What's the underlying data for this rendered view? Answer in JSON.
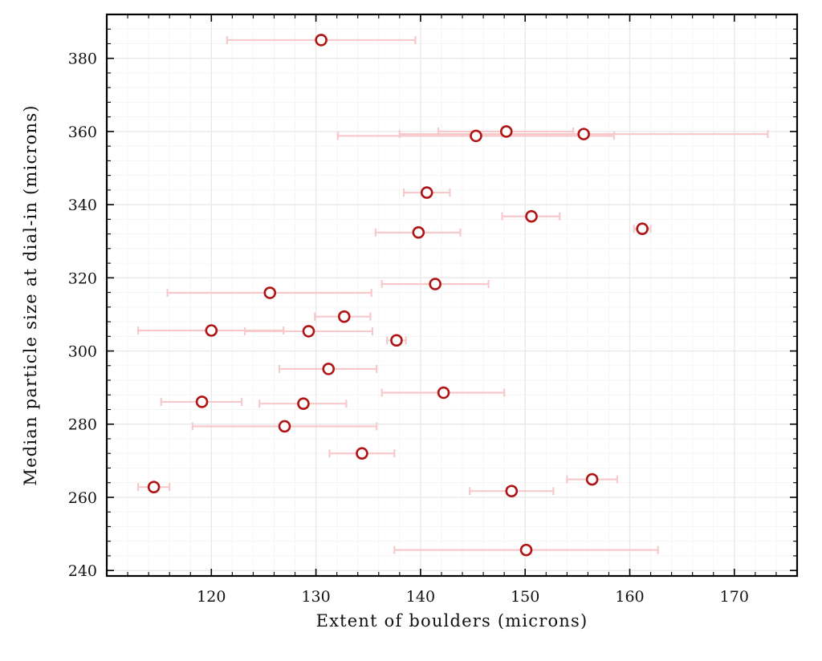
{
  "chart_data": {
    "type": "scatter",
    "title": "",
    "xlabel": "Extent of boulders (microns)",
    "ylabel": "Median particle size at dial-in (microns)",
    "xlim": [
      110,
      176
    ],
    "ylim": [
      238.5,
      392
    ],
    "xticks": [
      120,
      130,
      140,
      150,
      160,
      170
    ],
    "yticks": [
      240,
      260,
      280,
      300,
      320,
      340,
      360,
      380
    ],
    "xtick_labels": [
      "120",
      "130",
      "140",
      "150",
      "160",
      "170"
    ],
    "ytick_labels": [
      "240",
      "260",
      "280",
      "300",
      "320",
      "340",
      "360",
      "380"
    ],
    "grid": true,
    "marker": "open-circle",
    "colors": {
      "marker_edge": "#b01515",
      "error_bar": "#f7c9cb"
    },
    "points": [
      {
        "x": 130.5,
        "y": 385.0,
        "xerr_low": 121.5,
        "xerr_high": 139.5
      },
      {
        "x": 148.2,
        "y": 360.0,
        "xerr_low": 141.7,
        "xerr_high": 154.6
      },
      {
        "x": 155.6,
        "y": 359.3,
        "xerr_low": 138.0,
        "xerr_high": 173.2
      },
      {
        "x": 145.3,
        "y": 358.8,
        "xerr_low": 132.1,
        "xerr_high": 158.5
      },
      {
        "x": 140.6,
        "y": 343.3,
        "xerr_low": 138.4,
        "xerr_high": 142.8
      },
      {
        "x": 150.6,
        "y": 336.8,
        "xerr_low": 147.8,
        "xerr_high": 153.3
      },
      {
        "x": 161.2,
        "y": 333.4,
        "xerr_low": 160.4,
        "xerr_high": 162.0
      },
      {
        "x": 139.8,
        "y": 332.4,
        "xerr_low": 135.7,
        "xerr_high": 143.8
      },
      {
        "x": 141.4,
        "y": 318.3,
        "xerr_low": 136.3,
        "xerr_high": 146.5
      },
      {
        "x": 125.6,
        "y": 315.9,
        "xerr_low": 115.8,
        "xerr_high": 135.3
      },
      {
        "x": 132.7,
        "y": 309.4,
        "xerr_low": 129.9,
        "xerr_high": 135.2
      },
      {
        "x": 120.0,
        "y": 305.6,
        "xerr_low": 113.0,
        "xerr_high": 126.9
      },
      {
        "x": 129.3,
        "y": 305.4,
        "xerr_low": 123.2,
        "xerr_high": 135.4
      },
      {
        "x": 137.7,
        "y": 302.9,
        "xerr_low": 136.8,
        "xerr_high": 138.6
      },
      {
        "x": 131.2,
        "y": 295.1,
        "xerr_low": 126.5,
        "xerr_high": 135.8
      },
      {
        "x": 142.2,
        "y": 288.6,
        "xerr_low": 136.3,
        "xerr_high": 148.0
      },
      {
        "x": 119.1,
        "y": 286.1,
        "xerr_low": 115.2,
        "xerr_high": 122.9
      },
      {
        "x": 128.8,
        "y": 285.6,
        "xerr_low": 124.6,
        "xerr_high": 132.9
      },
      {
        "x": 127.0,
        "y": 279.4,
        "xerr_low": 118.2,
        "xerr_high": 135.8
      },
      {
        "x": 134.4,
        "y": 272.0,
        "xerr_low": 131.3,
        "xerr_high": 137.5
      },
      {
        "x": 156.4,
        "y": 264.9,
        "xerr_low": 154.0,
        "xerr_high": 158.8
      },
      {
        "x": 114.5,
        "y": 262.8,
        "xerr_low": 113.0,
        "xerr_high": 116.0
      },
      {
        "x": 148.7,
        "y": 261.7,
        "xerr_low": 144.7,
        "xerr_high": 152.7
      },
      {
        "x": 150.1,
        "y": 245.6,
        "xerr_low": 137.5,
        "xerr_high": 162.7
      }
    ]
  }
}
